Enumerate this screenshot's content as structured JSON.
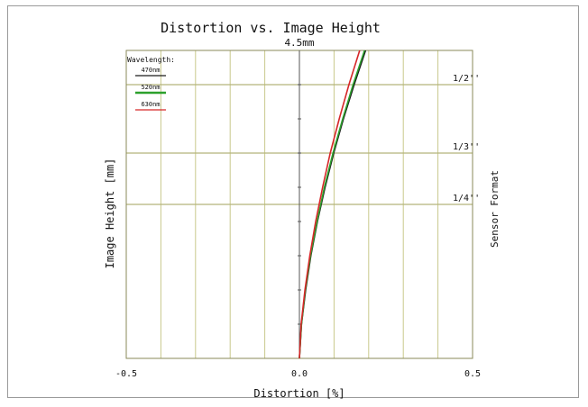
{
  "chart_data": {
    "type": "line",
    "title": "Distortion vs. Image Height",
    "subtitle": "4.5mm",
    "xlabel": "Distortion [%]",
    "ylabel": "Image Height [mm]",
    "right_label": "Sensor Format",
    "xlim": [
      -0.5,
      0.5
    ],
    "ylim": [
      0,
      4.5
    ],
    "x_ticks": [
      "-0.5",
      "0.0",
      "0.5"
    ],
    "grid": true,
    "legend": {
      "title": "Wavelength:",
      "placement": "top-left",
      "entries": [
        {
          "label": "470nm",
          "color": "#1a1a1a"
        },
        {
          "label": "520nm",
          "color": "#2ca02c"
        },
        {
          "label": "630nm",
          "color": "#d62728"
        }
      ]
    },
    "sensor_formats": [
      {
        "label": "1/2''",
        "y": 4.0
      },
      {
        "label": "1/3''",
        "y": 3.0
      },
      {
        "label": "1/4''",
        "y": 2.25
      }
    ],
    "series": [
      {
        "name": "470nm",
        "color": "#1a1a1a",
        "x": [
          0.0,
          0.006,
          0.018,
          0.033,
          0.052,
          0.074,
          0.099,
          0.127,
          0.158,
          0.191
        ],
        "y": [
          0.0,
          0.5,
          1.0,
          1.5,
          2.0,
          2.5,
          3.0,
          3.5,
          4.0,
          4.5
        ]
      },
      {
        "name": "520nm",
        "color": "#2ca02c",
        "x": [
          0.0,
          0.006,
          0.017,
          0.032,
          0.051,
          0.072,
          0.097,
          0.125,
          0.155,
          0.188
        ],
        "y": [
          0.0,
          0.5,
          1.0,
          1.5,
          2.0,
          2.5,
          3.0,
          3.5,
          4.0,
          4.5
        ]
      },
      {
        "name": "630nm",
        "color": "#d62728",
        "x": [
          0.0,
          0.005,
          0.016,
          0.03,
          0.047,
          0.067,
          0.089,
          0.115,
          0.143,
          0.174
        ],
        "y": [
          0.0,
          0.5,
          1.0,
          1.5,
          2.0,
          2.5,
          3.0,
          3.5,
          4.0,
          4.5
        ]
      }
    ]
  }
}
